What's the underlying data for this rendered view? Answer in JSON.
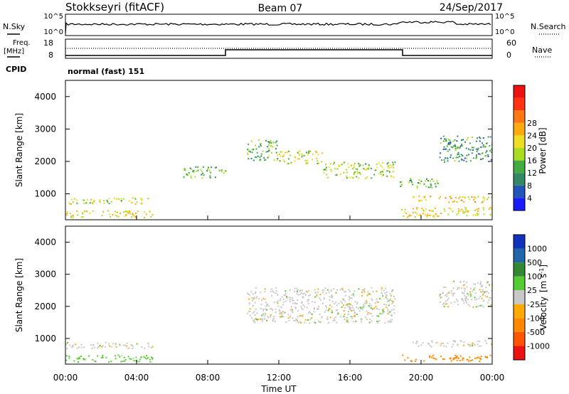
{
  "header": {
    "radar_title": "Stokkseyri (fitACF)",
    "beam_label": "Beam 07",
    "date_label": "24/Sep/2017"
  },
  "status_panels": {
    "nsky_label": "N.Sky",
    "nsearch_label": "N.Search",
    "noise_ticks": [
      "10^5",
      "10^0"
    ],
    "freq_label": "Freq.",
    "freq_unit": "[MHz]",
    "freq_ticks": [
      "18",
      "8"
    ],
    "nave_label": "Nave",
    "nave_ticks": [
      "60",
      "0"
    ],
    "cpid_label": "CPID",
    "cpid_value": "normal (fast) 151"
  },
  "chart_data": [
    {
      "type": "heatmap",
      "panel": "power",
      "xlabel": "Time UT",
      "ylabel": "Slant Range [km]",
      "x_ticks": [
        "00:00",
        "04:00",
        "08:00",
        "12:00",
        "16:00",
        "20:00",
        "00:00"
      ],
      "x_range_hours": [
        0,
        24
      ],
      "y_ticks": [
        1000,
        2000,
        3000,
        4000
      ],
      "ylim": [
        200,
        4500
      ],
      "colorbar_label": "Power [dB]",
      "colorbar_ticks": [
        4,
        8,
        12,
        16,
        20,
        24,
        28
      ],
      "colorbar_colors": [
        "#1a1aff",
        "#2255bb",
        "#338866",
        "#44aa44",
        "#aadd22",
        "#eedd22",
        "#ffaa11",
        "#ff7711",
        "#ff3311",
        "#ee1111"
      ],
      "echo_regions": [
        {
          "t0": 0.0,
          "t1": 4.9,
          "r0": 280,
          "r1": 500,
          "level": 18
        },
        {
          "t0": 0.0,
          "t1": 4.9,
          "r0": 700,
          "r1": 900,
          "level": 16
        },
        {
          "t0": 6.6,
          "t1": 9.0,
          "r0": 1500,
          "r1": 1850,
          "level": 10
        },
        {
          "t0": 10.2,
          "t1": 12.0,
          "r0": 2050,
          "r1": 2700,
          "level": 11
        },
        {
          "t0": 12.0,
          "t1": 14.5,
          "r0": 1950,
          "r1": 2350,
          "level": 16
        },
        {
          "t0": 14.5,
          "t1": 18.5,
          "r0": 1500,
          "r1": 2000,
          "level": 14
        },
        {
          "t0": 18.8,
          "t1": 24.0,
          "r0": 300,
          "r1": 600,
          "level": 18
        },
        {
          "t0": 19.5,
          "t1": 24.0,
          "r0": 750,
          "r1": 950,
          "level": 20
        },
        {
          "t0": 18.8,
          "t1": 21.0,
          "r0": 1200,
          "r1": 1500,
          "level": 10
        },
        {
          "t0": 21.0,
          "t1": 24.0,
          "r0": 2000,
          "r1": 2800,
          "level": 8
        }
      ]
    },
    {
      "type": "heatmap",
      "panel": "velocity",
      "xlabel": "Time UT",
      "ylabel": "Slant Range [km]",
      "x_ticks": [
        "00:00",
        "04:00",
        "08:00",
        "12:00",
        "16:00",
        "20:00",
        "00:00"
      ],
      "x_range_hours": [
        0,
        24
      ],
      "y_ticks": [
        1000,
        2000,
        3000,
        4000
      ],
      "ylim": [
        200,
        4500
      ],
      "colorbar_label": "Velocity",
      "colorbar_unit": "[m s",
      "colorbar_unit_exp": "-1",
      "colorbar_unit_close": "]",
      "colorbar_ticks": [
        "1000",
        "500",
        "100",
        "25",
        "-25",
        "-100",
        "-500",
        "-1000"
      ],
      "colorbar_colors": [
        "#1133bb",
        "#2266aa",
        "#338833",
        "#55cc33",
        "#c8c8c8",
        "#ffaa00",
        "#ff8800",
        "#ff5500",
        "#ee1111"
      ],
      "echo_regions": [
        {
          "t0": 0.0,
          "t1": 4.9,
          "r0": 280,
          "r1": 500,
          "v": 50
        },
        {
          "t0": 0.0,
          "t1": 4.9,
          "r0": 700,
          "r1": 900,
          "v": 0
        },
        {
          "t0": 10.2,
          "t1": 18.5,
          "r0": 1500,
          "r1": 2600,
          "v": 0
        },
        {
          "t0": 18.8,
          "t1": 24.0,
          "r0": 300,
          "r1": 500,
          "v": -150
        },
        {
          "t0": 19.5,
          "t1": 24.0,
          "r0": 750,
          "r1": 950,
          "v": 0
        },
        {
          "t0": 21.0,
          "t1": 24.0,
          "r0": 2000,
          "r1": 2800,
          "v": 0
        }
      ]
    }
  ]
}
